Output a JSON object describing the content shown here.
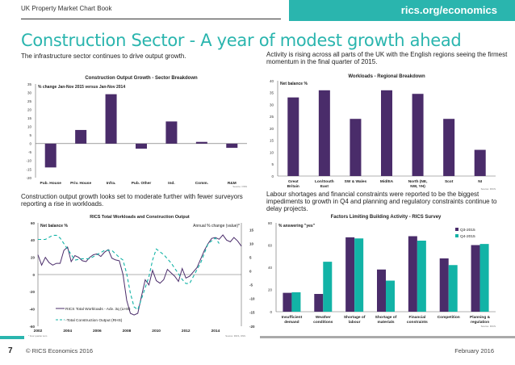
{
  "header": {
    "book_title": "UK Property Market Chart Book",
    "site": "rics.org/economics",
    "page_title": "Construction Sector - A year of modest growth ahead"
  },
  "paragraphs": {
    "p1": "The infrastructure sector continues to drive output growth.",
    "p2": "Activity is rising across all parts of the UK with the English regions seeing the firmest momentum in the final quarter of 2015.",
    "p3": "Construction output growth looks set to moderate further with fewer surveyors reporting a rise in workloads.",
    "p4": "Labour shortages and financial constraints were reported to be the biggest impediments to growth in Q4 and planning and regulatory constraints continue to delay projects."
  },
  "footer": {
    "page_number": "7",
    "copyright": "© RICS Economics 2016",
    "date": "February 2016"
  },
  "colors": {
    "accent": "#2ab5ae",
    "purple": "#4a2c6a",
    "teal": "#12b3a6"
  },
  "chart_data": [
    {
      "type": "bar",
      "title": "Construction Output Growth - Sector Breakdown",
      "subtitle": "% change Jan-Nov 2015 versus Jan-Nov 2014",
      "categories": [
        "Pub. House",
        "Priv. House",
        "Infra.",
        "Pub. Other",
        "Ind.",
        "Comm.",
        "R&M"
      ],
      "values": [
        -14,
        8,
        29,
        -3,
        13,
        1,
        -2.5
      ],
      "ylim": [
        -20,
        35
      ],
      "yticks": [
        -20,
        -15,
        -10,
        -5,
        0,
        5,
        10,
        15,
        20,
        25,
        30,
        35
      ],
      "xlabel": "",
      "ylabel": "",
      "source": "Source: ONS"
    },
    {
      "type": "bar",
      "title": "Workloads - Regional Breakdown",
      "subtitle": "Net balance %",
      "categories": [
        "Great Britain",
        "Lon/South East",
        "SW & Wales",
        "Mid/EA",
        "North (NE, NW, YH)",
        "Scot",
        "NI"
      ],
      "values": [
        33,
        36,
        24,
        36,
        34.5,
        24,
        11
      ],
      "ylim": [
        0,
        40
      ],
      "yticks": [
        0,
        5,
        10,
        15,
        20,
        25,
        30,
        35,
        40
      ],
      "xlabel": "",
      "ylabel": "",
      "source": "Source: RICS"
    },
    {
      "type": "line",
      "title": "RICS Total Workloads and Construction Output",
      "left_label": "Net balance %",
      "right_label": "Annual % change (value)*",
      "x_range": [
        2002,
        2015.75
      ],
      "xticks": [
        2002,
        2004,
        2006,
        2008,
        2010,
        2012,
        2014
      ],
      "ylim_left": [
        -60,
        60
      ],
      "yticks_left": [
        -60,
        -40,
        -20,
        0,
        20,
        40,
        60
      ],
      "ylim_right": [
        -20,
        17.5
      ],
      "yticks_right": [
        -20,
        -15,
        -10,
        -5,
        0,
        5,
        10,
        15
      ],
      "series": [
        {
          "name": "RICS Total Workloads - Adv. 3q (LHS)",
          "axis": "left",
          "style": "solid",
          "x": [
            2002,
            2002.25,
            2002.5,
            2002.75,
            2003,
            2003.25,
            2003.5,
            2003.75,
            2004,
            2004.25,
            2004.5,
            2004.75,
            2005,
            2005.25,
            2005.5,
            2005.75,
            2006,
            2006.25,
            2006.5,
            2006.75,
            2007,
            2007.25,
            2007.5,
            2007.75,
            2008,
            2008.25,
            2008.5,
            2008.75,
            2009,
            2009.25,
            2009.5,
            2009.75,
            2010,
            2010.25,
            2010.5,
            2010.75,
            2011,
            2011.25,
            2011.5,
            2011.75,
            2012,
            2012.25,
            2012.5,
            2012.75,
            2013,
            2013.25,
            2013.5,
            2013.75,
            2014,
            2014.25,
            2014.5,
            2014.75,
            2015,
            2015.25,
            2015.5,
            2015.75
          ],
          "values": [
            23,
            11,
            20,
            14,
            11,
            13,
            13,
            28,
            32,
            15,
            22,
            20,
            16,
            15,
            20,
            23,
            24,
            21,
            26,
            29,
            19,
            17,
            16,
            0,
            -30,
            -45,
            -47,
            -45,
            -25,
            -6,
            -12,
            5,
            -7,
            -10,
            -6,
            6,
            2,
            -2,
            -8,
            7,
            -4,
            -2,
            3,
            8,
            18,
            28,
            36,
            42,
            43,
            41,
            46,
            40,
            38,
            43,
            39,
            33
          ]
        },
        {
          "name": "-Total Construction Output (RHS)",
          "axis": "right",
          "style": "dashed",
          "x": [
            2002,
            2002.5,
            2003,
            2003.25,
            2003.5,
            2004,
            2004.5,
            2005,
            2005.5,
            2006,
            2006.5,
            2007,
            2007.5,
            2007.75,
            2008,
            2008.25,
            2008.5,
            2008.75,
            2009,
            2009.5,
            2009.75,
            2010,
            2010.5,
            2011,
            2011.5,
            2011.75,
            2012,
            2012.25,
            2012.5,
            2013,
            2013.5,
            2014,
            2014.25
          ],
          "values": [
            11.5,
            11.5,
            13,
            13,
            12,
            8,
            4,
            4.5,
            4.5,
            6,
            7.5,
            7.5,
            5,
            4,
            -1,
            -8,
            -13,
            -14,
            -10,
            -2,
            4,
            8,
            6,
            3,
            -1,
            -3,
            -4.5,
            -4.5,
            -2,
            3,
            10,
            12,
            10
          ]
        }
      ],
      "footnote": "* Four quarter sum",
      "source": "Source: RICS, ONS"
    },
    {
      "type": "bar",
      "title": "Factors Limiting Building Activity - RICS Survey",
      "subtitle": "% answering \"yes\"",
      "categories": [
        "Insufficient demand",
        "Weather conditions",
        "Shortage of labour",
        "Shortage of materials",
        "Financial constraints",
        "Competition",
        "Planning & regulation"
      ],
      "series": [
        {
          "name": "Q3-2015",
          "values": [
            17,
            16,
            67,
            38,
            68,
            48,
            60
          ]
        },
        {
          "name": "Q4-2015",
          "values": [
            17.5,
            45,
            66,
            28,
            64,
            42,
            61
          ]
        }
      ],
      "ylim": [
        0,
        80
      ],
      "yticks": [
        0,
        20,
        40,
        60,
        80
      ],
      "legend": "top-right",
      "source": "Source: RICS"
    }
  ]
}
